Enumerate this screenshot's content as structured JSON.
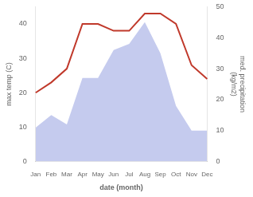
{
  "chart_data": {
    "type": "line",
    "xlabel": "date (month)",
    "ylabel": "max temp (C)",
    "y2label": "med. precipitation\n(kg/m2)",
    "categories": [
      "Jan",
      "Feb",
      "Mar",
      "Apr",
      "May",
      "Jun",
      "Jul",
      "Aug",
      "Sep",
      "Oct",
      "Nov",
      "Dec"
    ],
    "series": [
      {
        "type": "area",
        "axis": "y2",
        "color": "#c5cbee",
        "values": [
          11,
          15,
          12,
          27,
          27,
          36,
          38,
          45,
          35,
          18,
          10,
          10
        ]
      },
      {
        "type": "line",
        "color": "#c0392b",
        "values": [
          20,
          23,
          27,
          40,
          40,
          38,
          38,
          43,
          43,
          40,
          28,
          24
        ]
      }
    ],
    "ylim": [
      0,
      45
    ],
    "yticks": [
      0,
      10,
      20,
      30,
      40
    ],
    "y2lim": [
      0,
      50
    ],
    "y2ticks": [
      0,
      10,
      20,
      30,
      40,
      50
    ],
    "grid": false
  }
}
